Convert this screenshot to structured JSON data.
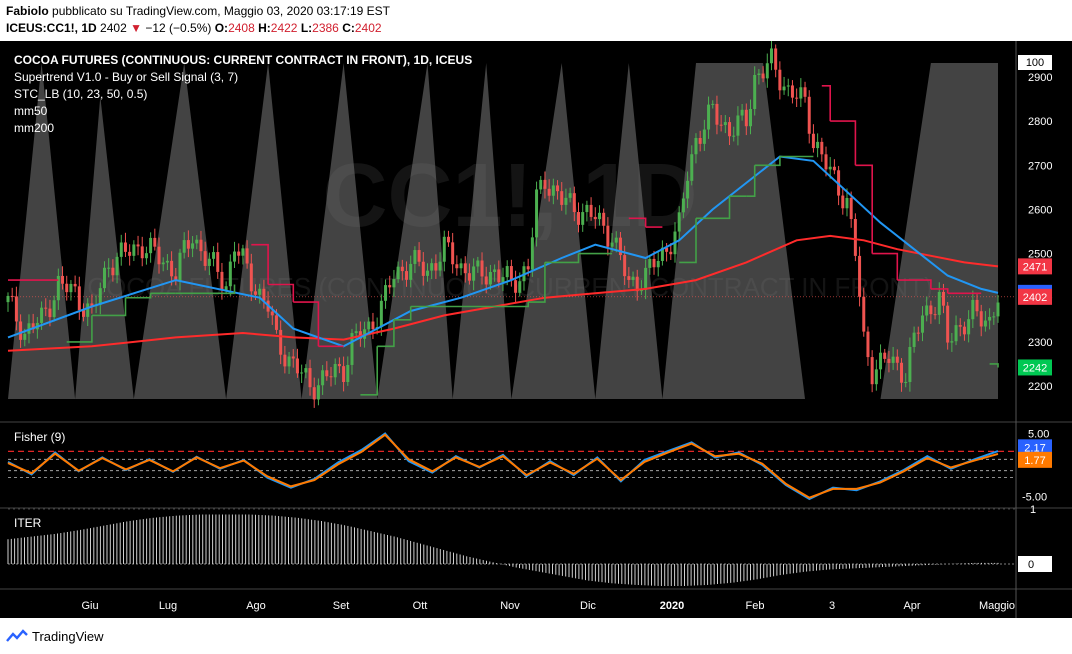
{
  "header": {
    "author": "Fabiolo",
    "published_text": "pubblicato su TradingView.com, Maggio 03, 2020 03:17:19 EST",
    "symbol": "ICEUS:CC1!,",
    "interval": "1D",
    "price": "2402",
    "arrow": "▼",
    "change": "−12 (−0.5%)",
    "o_label": "O:",
    "o_val": "2408",
    "h_label": "H:",
    "h_val": "2422",
    "l_label": "L:",
    "l_val": "2386",
    "c_label": "C:",
    "c_val": "2402"
  },
  "legend": {
    "title": "COCOA FUTURES (CONTINUOUS: CURRENT CONTRACT IN FRONT), 1D, ICEUS",
    "supertrend": "Supertrend V1.0 - Buy or Sell Signal (3, 7)",
    "stc": "STC_LB (10, 23, 50, 0.5)",
    "mm50": "mm50",
    "mm200": "mm200",
    "fisher": "Fisher (9)",
    "iter": "ITER"
  },
  "watermark": "CC1!, 1D",
  "watermark_sub": "COCOA FUTURES (CONTINUOUS: CURRENT CONTRACT IN FRONT)",
  "footer": {
    "brand": "TradingView"
  },
  "colors": {
    "up": "#4caf50",
    "down": "#ef5350",
    "mm50": "#2196f3",
    "mm200": "#ff2b2b",
    "supertrend_up": "#43a047",
    "supertrend_down": "#e0144c",
    "fisher_line": "#2196f3",
    "fisher_trigger": "#ff7a00",
    "badge_green": "#00c853",
    "badge_blue": "#2962ff",
    "badge_red": "#f23645",
    "badge_orange": "#ff7a00"
  },
  "chart_data": [
    {
      "type": "candlestick",
      "title": "COCOA FUTURES (CONTINUOUS: CURRENT CONTRACT IN FRONT), 1D, ICEUS",
      "x_ticks": [
        "Giu",
        "Lug",
        "Ago",
        "Set",
        "Ott",
        "Nov",
        "Dic",
        "2020",
        "Feb",
        "3",
        "Apr",
        "Maggio"
      ],
      "y_ticks": [
        2200,
        2300,
        2400,
        2500,
        2600,
        2700,
        2800,
        2900
      ],
      "ylim": [
        2130,
        2990
      ],
      "close_path": [
        [
          0,
          2390
        ],
        [
          2,
          2320
        ],
        [
          4,
          2350
        ],
        [
          6,
          2430
        ],
        [
          8,
          2410
        ],
        [
          10,
          2360
        ],
        [
          12,
          2480
        ],
        [
          14,
          2500
        ],
        [
          16,
          2520
        ],
        [
          18,
          2490
        ],
        [
          20,
          2460
        ],
        [
          22,
          2540
        ],
        [
          24,
          2480
        ],
        [
          26,
          2430
        ],
        [
          27,
          2520
        ],
        [
          29,
          2440
        ],
        [
          31,
          2380
        ],
        [
          32,
          2300
        ],
        [
          34,
          2250
        ],
        [
          36,
          2200
        ],
        [
          38,
          2220
        ],
        [
          40,
          2240
        ],
        [
          41,
          2300
        ],
        [
          43,
          2330
        ],
        [
          45,
          2400
        ],
        [
          46,
          2450
        ],
        [
          48,
          2480
        ],
        [
          50,
          2460
        ],
        [
          52,
          2510
        ],
        [
          54,
          2470
        ],
        [
          56,
          2450
        ],
        [
          58,
          2460
        ],
        [
          60,
          2430
        ],
        [
          62,
          2470
        ],
        [
          63,
          2620
        ],
        [
          64,
          2670
        ],
        [
          66,
          2620
        ],
        [
          68,
          2600
        ],
        [
          70,
          2580
        ],
        [
          72,
          2540
        ],
        [
          74,
          2430
        ],
        [
          76,
          2450
        ],
        [
          78,
          2500
        ],
        [
          80,
          2560
        ],
        [
          81,
          2680
        ],
        [
          82,
          2760
        ],
        [
          84,
          2820
        ],
        [
          86,
          2780
        ],
        [
          88,
          2800
        ],
        [
          89,
          2900
        ],
        [
          91,
          2930
        ],
        [
          93,
          2870
        ],
        [
          95,
          2840
        ],
        [
          96,
          2760
        ],
        [
          98,
          2680
        ],
        [
          100,
          2620
        ],
        [
          101,
          2500
        ],
        [
          102,
          2300
        ],
        [
          103,
          2240
        ],
        [
          105,
          2260
        ],
        [
          107,
          2230
        ],
        [
          108,
          2300
        ],
        [
          109,
          2360
        ],
        [
          111,
          2400
        ],
        [
          112,
          2300
        ],
        [
          113,
          2330
        ],
        [
          115,
          2360
        ],
        [
          117,
          2350
        ],
        [
          118,
          2402
        ]
      ],
      "mm50": [
        [
          0,
          2310
        ],
        [
          10,
          2380
        ],
        [
          20,
          2440
        ],
        [
          30,
          2400
        ],
        [
          34,
          2330
        ],
        [
          40,
          2290
        ],
        [
          44,
          2330
        ],
        [
          48,
          2370
        ],
        [
          54,
          2400
        ],
        [
          60,
          2440
        ],
        [
          66,
          2490
        ],
        [
          70,
          2520
        ],
        [
          76,
          2490
        ],
        [
          80,
          2530
        ],
        [
          84,
          2600
        ],
        [
          88,
          2660
        ],
        [
          92,
          2720
        ],
        [
          96,
          2710
        ],
        [
          100,
          2640
        ],
        [
          104,
          2570
        ],
        [
          108,
          2510
        ],
        [
          112,
          2450
        ],
        [
          116,
          2420
        ],
        [
          118,
          2411
        ]
      ],
      "mm200": [
        [
          0,
          2280
        ],
        [
          10,
          2290
        ],
        [
          20,
          2310
        ],
        [
          28,
          2320
        ],
        [
          34,
          2310
        ],
        [
          40,
          2305
        ],
        [
          46,
          2330
        ],
        [
          52,
          2360
        ],
        [
          58,
          2380
        ],
        [
          64,
          2400
        ],
        [
          70,
          2410
        ],
        [
          76,
          2420
        ],
        [
          82,
          2440
        ],
        [
          88,
          2480
        ],
        [
          94,
          2530
        ],
        [
          98,
          2540
        ],
        [
          102,
          2530
        ],
        [
          106,
          2510
        ],
        [
          110,
          2495
        ],
        [
          114,
          2480
        ],
        [
          118,
          2471
        ]
      ],
      "supertrend": [
        [
          0,
          2440,
          "down"
        ],
        [
          6,
          2440,
          "down"
        ],
        [
          7,
          2300,
          "up"
        ],
        [
          9,
          2300,
          "up"
        ],
        [
          10,
          2360,
          "up"
        ],
        [
          14,
          2400,
          "up"
        ],
        [
          17,
          2410,
          "up"
        ],
        [
          20,
          2410,
          "up"
        ],
        [
          24,
          2410,
          "up"
        ],
        [
          27,
          2430,
          "up"
        ],
        [
          29,
          2520,
          "down"
        ],
        [
          31,
          2430,
          "down"
        ],
        [
          34,
          2390,
          "down"
        ],
        [
          36,
          2390,
          "down"
        ],
        [
          37,
          2290,
          "down"
        ],
        [
          40,
          2290,
          "down"
        ],
        [
          42,
          2180,
          "up"
        ],
        [
          44,
          2290,
          "up"
        ],
        [
          46,
          2350,
          "up"
        ],
        [
          48,
          2380,
          "up"
        ],
        [
          62,
          2390,
          "up"
        ],
        [
          64,
          2480,
          "up"
        ],
        [
          68,
          2500,
          "up"
        ],
        [
          72,
          2500,
          "up"
        ],
        [
          74,
          2580,
          "down"
        ],
        [
          76,
          2560,
          "down"
        ],
        [
          78,
          2560,
          "down"
        ],
        [
          80,
          2480,
          "up"
        ],
        [
          82,
          2580,
          "up"
        ],
        [
          86,
          2630,
          "up"
        ],
        [
          88,
          2630,
          "up"
        ],
        [
          89,
          2700,
          "up"
        ],
        [
          92,
          2720,
          "up"
        ],
        [
          96,
          2720,
          "up"
        ],
        [
          97,
          2880,
          "down"
        ],
        [
          98,
          2800,
          "down"
        ],
        [
          101,
          2700,
          "down"
        ],
        [
          103,
          2500,
          "down"
        ],
        [
          106,
          2440,
          "down"
        ],
        [
          110,
          2420,
          "down"
        ],
        [
          112,
          2410,
          "down"
        ],
        [
          116,
          2410,
          "down"
        ],
        [
          117,
          2250,
          "up"
        ],
        [
          118,
          2242,
          "up"
        ]
      ],
      "stc_peaks": [
        [
          4,
          100
        ],
        [
          8,
          0
        ],
        [
          11,
          90
        ],
        [
          15,
          0
        ],
        [
          21,
          100
        ],
        [
          26,
          0
        ],
        [
          31,
          100
        ],
        [
          35,
          0
        ],
        [
          40,
          100
        ],
        [
          44,
          0
        ],
        [
          50,
          100
        ],
        [
          53,
          0
        ],
        [
          57,
          100
        ],
        [
          60,
          0
        ],
        [
          66,
          100
        ],
        [
          70,
          0
        ],
        [
          74,
          100
        ],
        [
          78,
          0
        ],
        [
          82,
          100
        ],
        [
          90,
          100
        ],
        [
          95,
          0
        ],
        [
          104,
          0
        ],
        [
          110,
          100
        ],
        [
          118,
          100
        ]
      ],
      "price_badges": [
        {
          "value": "2471",
          "kind": "red"
        },
        {
          "value": "2411",
          "kind": "blue"
        },
        {
          "value": "2402",
          "kind": "red"
        },
        {
          "value": "2242",
          "kind": "green"
        }
      ],
      "top_badge": "100"
    },
    {
      "type": "line",
      "title": "Fisher (9)",
      "y_ticks": [
        "5.00",
        "-5.00"
      ],
      "series": [
        {
          "name": "Fisher",
          "values": [
            0.5,
            -1.5,
            2.0,
            -1.0,
            1.2,
            -0.8,
            0.9,
            -1.1,
            1.3,
            -0.6,
            0.8,
            -2.0,
            -3.6,
            -2.2,
            0.4,
            2.4,
            5.0,
            0.6,
            -1.2,
            1.4,
            -0.4,
            1.6,
            -1.8,
            0.6,
            -1.6,
            1.2,
            -2.6,
            0.8,
            2.2,
            3.6,
            1.2,
            2.0,
            0.0,
            -3.2,
            -5.4,
            -3.6,
            -4.0,
            -2.6,
            -0.8,
            1.4,
            -0.6,
            0.9,
            2.2
          ]
        },
        {
          "name": "Trigger",
          "values": [
            0.3,
            -1.3,
            1.8,
            -0.9,
            1.1,
            -0.7,
            0.8,
            -1.0,
            1.2,
            -0.5,
            0.7,
            -1.8,
            -3.4,
            -2.4,
            0.1,
            2.1,
            4.8,
            0.9,
            -1.0,
            1.2,
            -0.3,
            1.4,
            -1.6,
            0.4,
            -1.4,
            1.0,
            -2.4,
            0.5,
            2.0,
            3.4,
            1.4,
            1.8,
            0.2,
            -3.0,
            -5.2,
            -3.8,
            -3.8,
            -2.8,
            -1.0,
            1.1,
            -0.4,
            0.7,
            1.77
          ]
        }
      ],
      "levels": [
        2.17,
        1.77
      ],
      "badges": [
        {
          "value": "2.17",
          "kind": "blue"
        },
        {
          "value": "1.77",
          "kind": "orange"
        }
      ]
    },
    {
      "type": "bar",
      "title": "ITER",
      "y_ticks": [
        "1",
        "0"
      ],
      "badge": "0",
      "values": [
        0.45,
        0.5,
        0.55,
        0.62,
        0.7,
        0.78,
        0.84,
        0.88,
        0.9,
        0.9,
        0.9,
        0.88,
        0.84,
        0.78,
        0.7,
        0.6,
        0.5,
        0.38,
        0.26,
        0.14,
        0.04,
        -0.06,
        -0.14,
        -0.22,
        -0.3,
        -0.35,
        -0.38,
        -0.4,
        -0.4,
        -0.38,
        -0.34,
        -0.28,
        -0.2,
        -0.14,
        -0.1,
        -0.08,
        -0.06,
        -0.04,
        -0.02,
        0.0,
        0.02,
        0.02
      ]
    }
  ]
}
